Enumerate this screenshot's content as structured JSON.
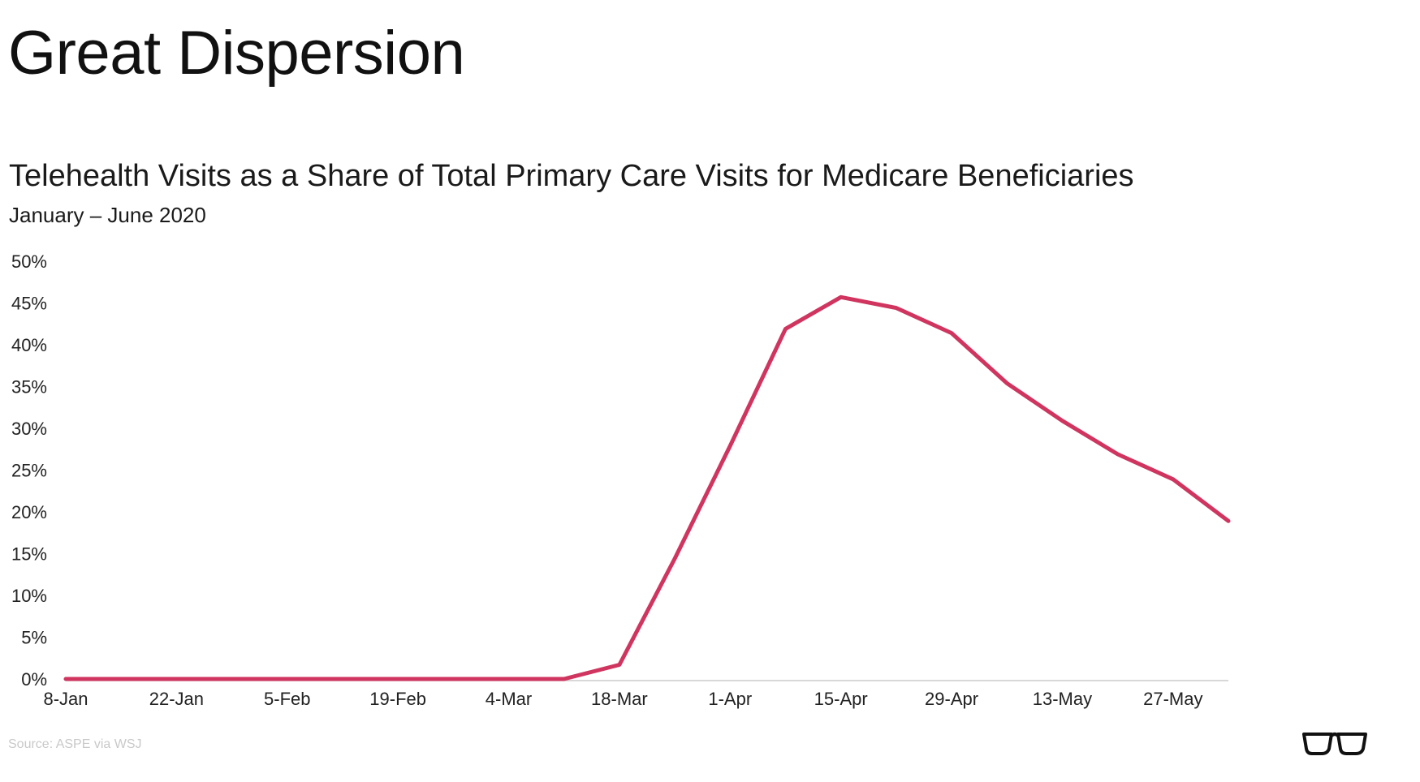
{
  "slide": {
    "title": "Great Dispersion",
    "source": "Source: ASPE via WSJ"
  },
  "icons": {
    "glasses": "glasses-icon"
  },
  "colors": {
    "line": "#d0355f",
    "text": "#1a1a1a",
    "axis": "#cccccc"
  },
  "chart_data": {
    "type": "line",
    "title": "Telehealth Visits as a Share of Total Primary Care Visits for Medicare Beneficiaries",
    "subtitle": "January – June 2020",
    "xlabel": "",
    "ylabel": "",
    "ylim": [
      0,
      50
    ],
    "grid": false,
    "legend": "none",
    "y_ticks": [
      "0%",
      "5%",
      "10%",
      "15%",
      "20%",
      "25%",
      "30%",
      "35%",
      "40%",
      "45%",
      "50%"
    ],
    "x_ticks": [
      "8-Jan",
      "22-Jan",
      "5-Feb",
      "19-Feb",
      "4-Mar",
      "18-Mar",
      "1-Apr",
      "15-Apr",
      "29-Apr",
      "13-May",
      "27-May"
    ],
    "x": [
      "8-Jan",
      "15-Jan",
      "22-Jan",
      "29-Jan",
      "5-Feb",
      "12-Feb",
      "19-Feb",
      "26-Feb",
      "4-Mar",
      "11-Mar",
      "18-Mar",
      "25-Mar",
      "1-Apr",
      "8-Apr",
      "15-Apr",
      "22-Apr",
      "29-Apr",
      "6-May",
      "13-May",
      "20-May",
      "27-May",
      "3-Jun"
    ],
    "series": [
      {
        "values": [
          0.1,
          0.1,
          0.1,
          0.1,
          0.1,
          0.1,
          0.1,
          0.1,
          0.1,
          0.1,
          1.8,
          14.5,
          28.0,
          42.0,
          45.8,
          44.5,
          41.5,
          35.5,
          31.0,
          27.0,
          24.0,
          19.0
        ]
      }
    ]
  }
}
